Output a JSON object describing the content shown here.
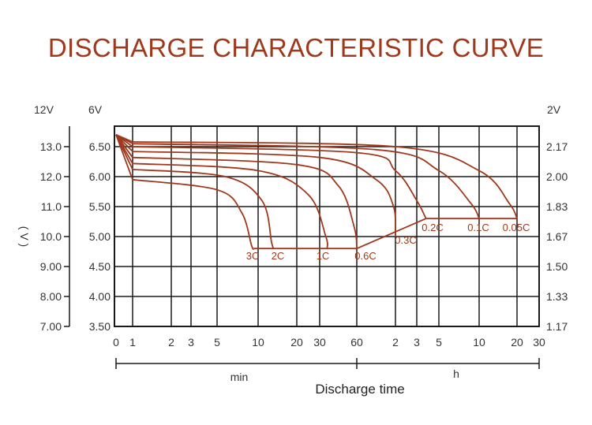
{
  "title": "DISCHARGE CHARACTERISTIC CURVE",
  "colors": {
    "curve": "#a0391c",
    "grid": "#1a1a1a",
    "title": "#a0391c"
  },
  "chart_data": {
    "type": "line",
    "title": "DISCHARGE CHARACTERISTIC CURVE",
    "xlabel": "Discharge time",
    "x_segments": [
      "min",
      "h"
    ],
    "ylabel": "( V )",
    "y_headers": {
      "y12": "12V",
      "y6": "6V",
      "y2": "2V"
    },
    "y_ticks_12v": [
      "13.0",
      "12.0",
      "11.0",
      "10.0",
      "9.00",
      "8.00",
      "7.00"
    ],
    "y_ticks_6v": [
      "6.50",
      "6.00",
      "5.50",
      "5.00",
      "4.50",
      "4.00",
      "3.50"
    ],
    "y_ticks_2v": [
      "2.17",
      "2.00",
      "1.83",
      "1.67",
      "1.50",
      "1.33",
      "1.17"
    ],
    "ylim_6v": [
      3.5,
      6.7
    ],
    "x_ticks_min": [
      "0",
      "1",
      "2",
      "3",
      "5",
      "10",
      "20",
      "30",
      "60"
    ],
    "x_ticks_h": [
      "2",
      "3",
      "5",
      "10",
      "20",
      "30"
    ],
    "grid": true,
    "series": [
      {
        "name": "3C",
        "points": [
          [
            0,
            6.7
          ],
          [
            1,
            5.95
          ],
          [
            5,
            5.78
          ],
          [
            8,
            5.4
          ],
          [
            9.2,
            4.85
          ],
          [
            9.5,
            4.8
          ]
        ]
      },
      {
        "name": "2C",
        "points": [
          [
            0,
            6.7
          ],
          [
            1,
            6.12
          ],
          [
            6,
            6.0
          ],
          [
            11,
            5.6
          ],
          [
            13.5,
            4.9
          ],
          [
            14,
            4.8
          ]
        ]
      },
      {
        "name": "1C",
        "points": [
          [
            0,
            6.7
          ],
          [
            1,
            6.22
          ],
          [
            10,
            6.1
          ],
          [
            25,
            5.7
          ],
          [
            35,
            5.0
          ],
          [
            36,
            4.8
          ]
        ]
      },
      {
        "name": "0.6C",
        "points": [
          [
            0,
            6.7
          ],
          [
            1,
            6.32
          ],
          [
            20,
            6.2
          ],
          [
            45,
            5.85
          ],
          [
            58,
            5.15
          ],
          [
            60,
            4.8
          ]
        ]
      },
      {
        "name": "0.3C",
        "points": [
          [
            0,
            6.7
          ],
          [
            1,
            6.42
          ],
          [
            30,
            6.32
          ],
          [
            90,
            5.95
          ],
          [
            117,
            5.5
          ],
          [
            120,
            5.0
          ]
        ]
      },
      {
        "name": "0.2C",
        "points": [
          [
            0,
            6.7
          ],
          [
            1,
            6.5
          ],
          [
            60,
            6.4
          ],
          [
            120,
            6.1
          ],
          [
            180,
            5.6
          ],
          [
            230,
            5.3
          ]
        ]
      },
      {
        "name": "0.1C",
        "points": [
          [
            0,
            6.7
          ],
          [
            1,
            6.55
          ],
          [
            90,
            6.45
          ],
          [
            300,
            6.1
          ],
          [
            540,
            5.55
          ],
          [
            600,
            5.3
          ]
        ]
      },
      {
        "name": "0.05C",
        "points": [
          [
            0,
            6.7
          ],
          [
            1,
            6.58
          ],
          [
            120,
            6.5
          ],
          [
            600,
            6.1
          ],
          [
            1080,
            5.55
          ],
          [
            1200,
            5.3
          ]
        ]
      }
    ],
    "cutoff_line": {
      "points": [
        [
          9.5,
          4.8
        ],
        [
          60,
          4.8
        ],
        [
          230,
          5.3
        ],
        [
          1200,
          5.3
        ]
      ]
    }
  }
}
